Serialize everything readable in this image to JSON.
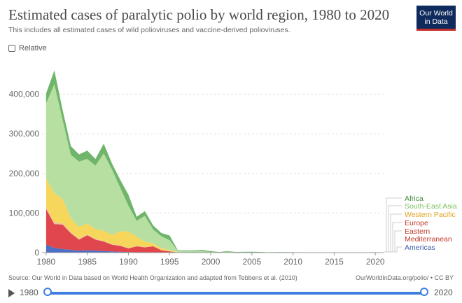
{
  "header": {
    "title": "Estimated cases of paralytic polio by world region, 1980 to 2020",
    "subtitle": "This includes all estimated cases of wild polioviruses and vaccine-derived polioviruses.",
    "logo_line1": "Our World",
    "logo_line2": "in Data"
  },
  "controls": {
    "relative_label": "Relative"
  },
  "footer": {
    "source": "Source: Our World in Data based on World Health Organization and adapted from Tebbens et al. (2010)",
    "license": "OurWorldInData.org/polio/ • CC BY"
  },
  "timeline": {
    "start": "1980",
    "end": "2020"
  },
  "chart_data": {
    "type": "area",
    "stacked": true,
    "x": [
      1980,
      1981,
      1982,
      1983,
      1984,
      1985,
      1986,
      1987,
      1988,
      1989,
      1990,
      1991,
      1992,
      1993,
      1994,
      1995,
      1996,
      1997,
      1998,
      1999,
      2000,
      2001,
      2002,
      2003,
      2004,
      2005,
      2006,
      2007,
      2008,
      2009,
      2010,
      2011,
      2012,
      2013,
      2014,
      2015,
      2016,
      2017,
      2018,
      2019,
      2020,
      2021
    ],
    "series": [
      {
        "name": "Americas",
        "color": "#4c6fc5",
        "values": [
          20000,
          12000,
          9000,
          7000,
          5000,
          6000,
          5000,
          4000,
          3000,
          2000,
          1500,
          800,
          200,
          100,
          0,
          0,
          0,
          0,
          0,
          0,
          0,
          0,
          0,
          0,
          0,
          0,
          0,
          0,
          0,
          0,
          0,
          0,
          0,
          0,
          0,
          0,
          0,
          0,
          0,
          0,
          0,
          0
        ]
      },
      {
        "name": "Eastern Mediterranean",
        "color": "#e0474c",
        "values": [
          90000,
          60000,
          62000,
          42000,
          28000,
          38000,
          28000,
          24000,
          17000,
          15000,
          9000,
          15000,
          13000,
          16000,
          6000,
          3000,
          600,
          300,
          300,
          200,
          200,
          100,
          200,
          100,
          100,
          200,
          200,
          100,
          100,
          100,
          100,
          100,
          100,
          200,
          300,
          100,
          100,
          100,
          100,
          200,
          200,
          0
        ]
      },
      {
        "name": "Europe",
        "color": "#f0b9b0",
        "values": [
          4000,
          3000,
          2500,
          2000,
          2000,
          1500,
          1500,
          1200,
          1000,
          1000,
          800,
          700,
          600,
          500,
          400,
          300,
          200,
          100,
          0,
          0,
          0,
          0,
          0,
          0,
          0,
          0,
          0,
          0,
          0,
          0,
          200,
          0,
          0,
          0,
          0,
          0,
          0,
          0,
          0,
          0,
          0,
          0
        ]
      },
      {
        "name": "Western Pacific",
        "color": "#f7d65c",
        "values": [
          73000,
          75000,
          62000,
          36000,
          30000,
          28000,
          25000,
          26000,
          24000,
          36000,
          42000,
          24000,
          14000,
          7000,
          5000,
          3000,
          500,
          300,
          200,
          100,
          100,
          0,
          0,
          0,
          0,
          0,
          0,
          0,
          0,
          0,
          0,
          0,
          0,
          0,
          0,
          0,
          0,
          0,
          0,
          0,
          0,
          0
        ]
      },
      {
        "name": "South-East Asia",
        "color": "#b7dfa2",
        "values": [
          190000,
          275000,
          200000,
          160000,
          165000,
          163000,
          160000,
          195000,
          165000,
          110000,
          65000,
          40000,
          65000,
          35000,
          30000,
          25000,
          3000,
          2500,
          2500,
          3000,
          1500,
          500,
          2000,
          600,
          300,
          500,
          500,
          300,
          300,
          200,
          100,
          0,
          0,
          0,
          0,
          0,
          0,
          0,
          0,
          0,
          0,
          0
        ]
      },
      {
        "name": "Africa",
        "color": "#6fb56a",
        "values": [
          25000,
          35000,
          25000,
          22000,
          18000,
          21000,
          17000,
          25000,
          15000,
          20000,
          28000,
          10000,
          12000,
          10000,
          8000,
          12000,
          1500,
          2000,
          2500,
          3000,
          2000,
          1000,
          1500,
          1000,
          1500,
          1500,
          1000,
          500,
          1000,
          1000,
          800,
          800,
          500,
          700,
          400,
          200,
          100,
          300,
          400,
          600,
          800,
          400
        ]
      }
    ],
    "yticks": [
      0,
      100000,
      200000,
      300000,
      400000
    ],
    "ytick_labels": [
      "0",
      "100,000",
      "200,000",
      "300,000",
      "400,000"
    ],
    "xticks": [
      1980,
      1985,
      1990,
      1995,
      2000,
      2005,
      2010,
      2015,
      2020
    ],
    "xlim": [
      1979.5,
      2021
    ],
    "ylim": [
      0,
      470000
    ],
    "legend_order": [
      "Africa",
      "South-East Asia",
      "Western Pacific",
      "Europe",
      "Eastern Mediterranean",
      "Americas"
    ],
    "legend_text": {
      "Africa": [
        "Africa"
      ],
      "South-East Asia": [
        "South-East Asia"
      ],
      "Western Pacific": [
        "Western Pacific"
      ],
      "Europe": [
        "Europe"
      ],
      "Eastern Mediterranean": [
        "Eastern",
        "Mediterranean"
      ],
      "Americas": [
        "Americas"
      ]
    },
    "legend_colors": {
      "Africa": "#3f8a3a",
      "South-East Asia": "#7cc05f",
      "Western Pacific": "#e0a21c",
      "Europe": "#c0392b",
      "Eastern Mediterranean": "#c0392b",
      "Americas": "#3d5fae"
    }
  }
}
